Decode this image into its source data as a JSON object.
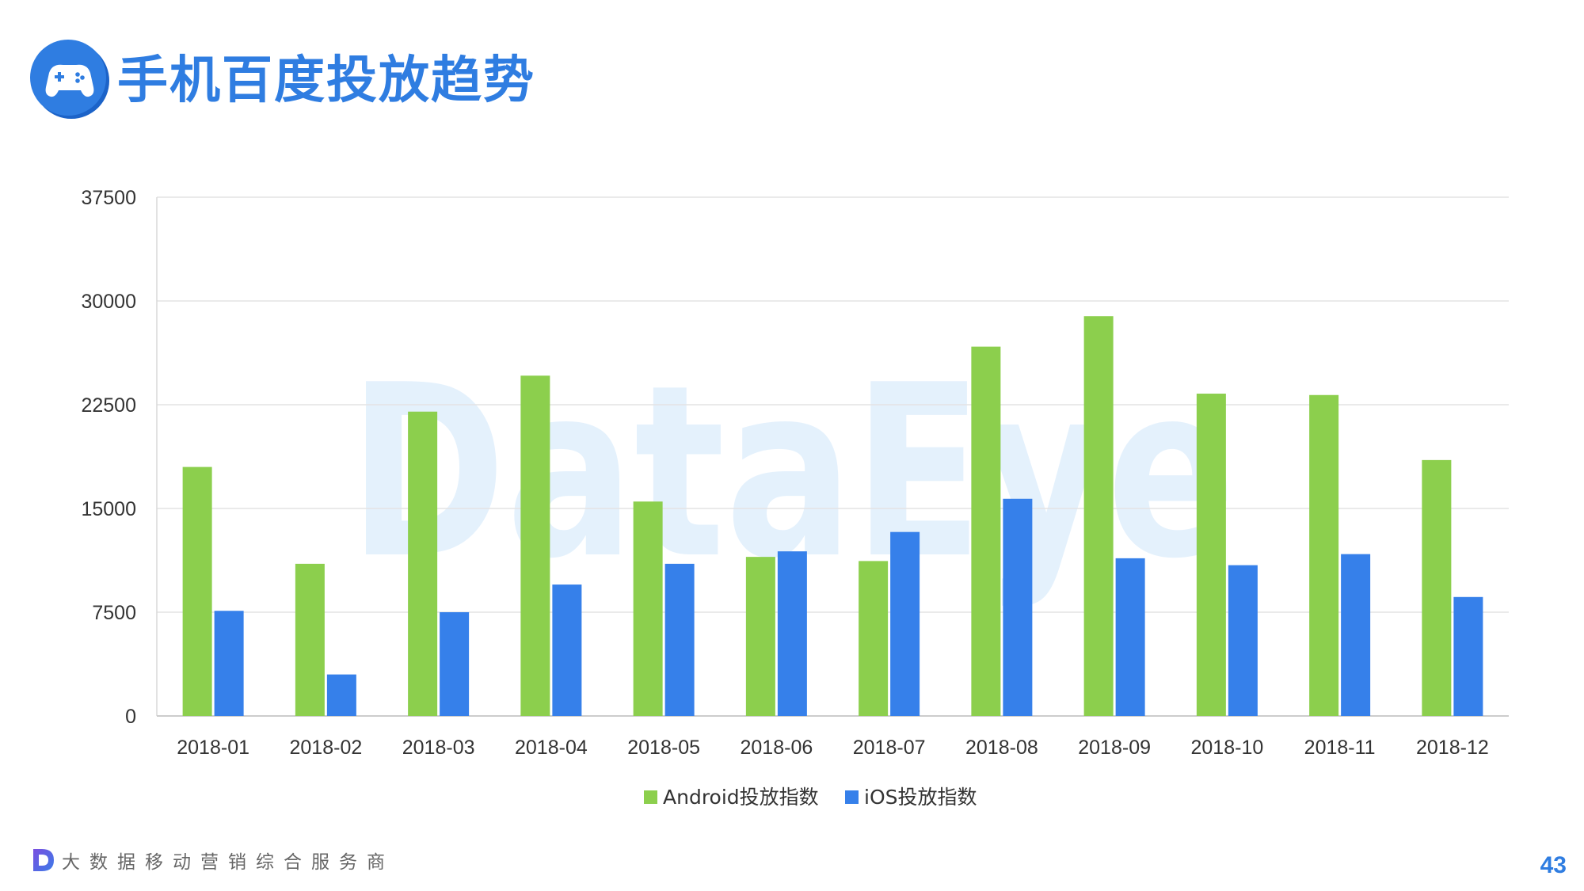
{
  "header": {
    "title": "手机百度投放趋势",
    "icon": "gamepad-icon",
    "accent_color": "#2f7de1"
  },
  "watermark": {
    "text": "DataEye"
  },
  "chart_data": {
    "type": "bar",
    "title": "",
    "xlabel": "",
    "ylabel": "",
    "categories": [
      "2018-01",
      "2018-02",
      "2018-03",
      "2018-04",
      "2018-05",
      "2018-06",
      "2018-07",
      "2018-08",
      "2018-09",
      "2018-10",
      "2018-11",
      "2018-12"
    ],
    "series": [
      {
        "name": "Android投放指数",
        "color": "#8ccf4d",
        "values": [
          18000,
          11000,
          22000,
          24600,
          15500,
          11500,
          11200,
          26700,
          28900,
          23300,
          23200,
          18500
        ]
      },
      {
        "name": "iOS投放指数",
        "color": "#3680ea",
        "values": [
          7600,
          3000,
          7500,
          9500,
          11000,
          11900,
          13300,
          15700,
          11400,
          10900,
          11700,
          8600
        ]
      }
    ],
    "ylim": [
      0,
      37500
    ],
    "yticks": [
      0,
      7500,
      15000,
      22500,
      30000,
      37500
    ],
    "grid": true,
    "legend_position": "bottom"
  },
  "footer": {
    "tagline": "大数据移动营销综合服务商",
    "logo": "dataeye-d-logo-icon"
  },
  "page": {
    "number": "43"
  }
}
